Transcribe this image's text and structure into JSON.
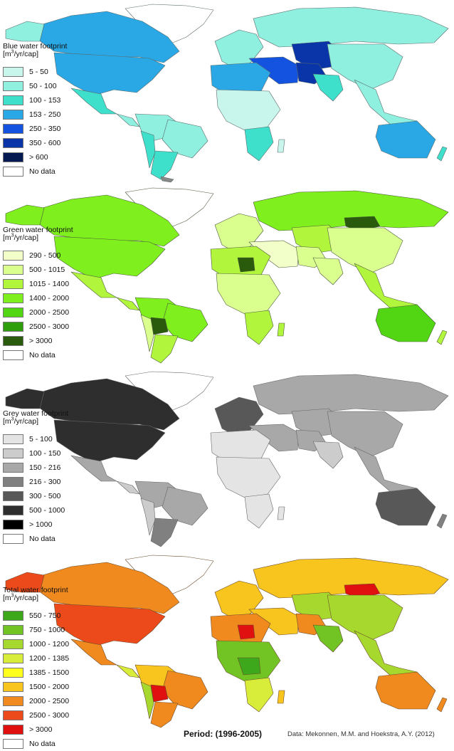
{
  "maps": [
    {
      "id": "blue",
      "title_line1": "Blue water footprint",
      "unit_prefix": "[m",
      "unit_sup": "3",
      "unit_suffix": "/yr/cap]",
      "legend": [
        {
          "label": "5 - 50",
          "color": "#c8f5ec"
        },
        {
          "label": "50 - 100",
          "color": "#8ff0e0"
        },
        {
          "label": "100 - 153",
          "color": "#3fe0cb"
        },
        {
          "label": "153 - 250",
          "color": "#2aa8e6"
        },
        {
          "label": "250 - 350",
          "color": "#1452e0"
        },
        {
          "label": "350 - 600",
          "color": "#0a35a8"
        },
        {
          "label": "> 600",
          "color": "#061a52"
        },
        {
          "label": "No data",
          "color": "#ffffff"
        }
      ]
    },
    {
      "id": "green",
      "title_line1": "Green water footprint",
      "unit_prefix": "[m",
      "unit_sup": "3",
      "unit_suffix": "/yr/cap]",
      "legend": [
        {
          "label": "290 - 500",
          "color": "#f2ffc8"
        },
        {
          "label": "500 - 1015",
          "color": "#dbff8f"
        },
        {
          "label": "1015 - 1400",
          "color": "#b2f53d"
        },
        {
          "label": "1400 - 2000",
          "color": "#7ff01e"
        },
        {
          "label": "2000 - 2500",
          "color": "#52d613"
        },
        {
          "label": "2500 - 3000",
          "color": "#2f9e0d"
        },
        {
          "label": "> 3000",
          "color": "#2a5a0c"
        },
        {
          "label": "No data",
          "color": "#ffffff"
        }
      ]
    },
    {
      "id": "grey",
      "title_line1": "Grey water footprint",
      "unit_prefix": "[m",
      "unit_sup": "3",
      "unit_suffix": "/yr/cap]",
      "legend": [
        {
          "label": "5 - 100",
          "color": "#e4e4e4"
        },
        {
          "label": "100 - 150",
          "color": "#cccccc"
        },
        {
          "label": "150 - 216",
          "color": "#a8a8a8"
        },
        {
          "label": "216 - 300",
          "color": "#808080"
        },
        {
          "label": "300 - 500",
          "color": "#585858"
        },
        {
          "label": "500 - 1000",
          "color": "#2e2e2e"
        },
        {
          "label": "> 1000",
          "color": "#000000"
        },
        {
          "label": "No data",
          "color": "#ffffff"
        }
      ]
    },
    {
      "id": "total",
      "title_line1": "Total water footprint",
      "unit_prefix": "[m",
      "unit_sup": "3",
      "unit_suffix": "/yr/cap]",
      "legend": [
        {
          "label": "550 - 750",
          "color": "#3ea81c"
        },
        {
          "label": "750 - 1000",
          "color": "#72c424"
        },
        {
          "label": "1000 - 1200",
          "color": "#a7d82e"
        },
        {
          "label": "1200 - 1385",
          "color": "#d8ec3a"
        },
        {
          "label": "1385 - 1500",
          "color": "#ffff1e"
        },
        {
          "label": "1500 - 2000",
          "color": "#f8c41e"
        },
        {
          "label": "2000 - 2500",
          "color": "#f08a1e"
        },
        {
          "label": "2500 - 3000",
          "color": "#ec4a1a"
        },
        {
          "label": "> 3000",
          "color": "#e01010"
        },
        {
          "label": "No data",
          "color": "#ffffff"
        }
      ]
    }
  ],
  "footer": {
    "period": "Period: (1996-2005)",
    "credit": "Data: Mekonnen, M.M. and Hoekstra, A.Y. (2012)"
  }
}
